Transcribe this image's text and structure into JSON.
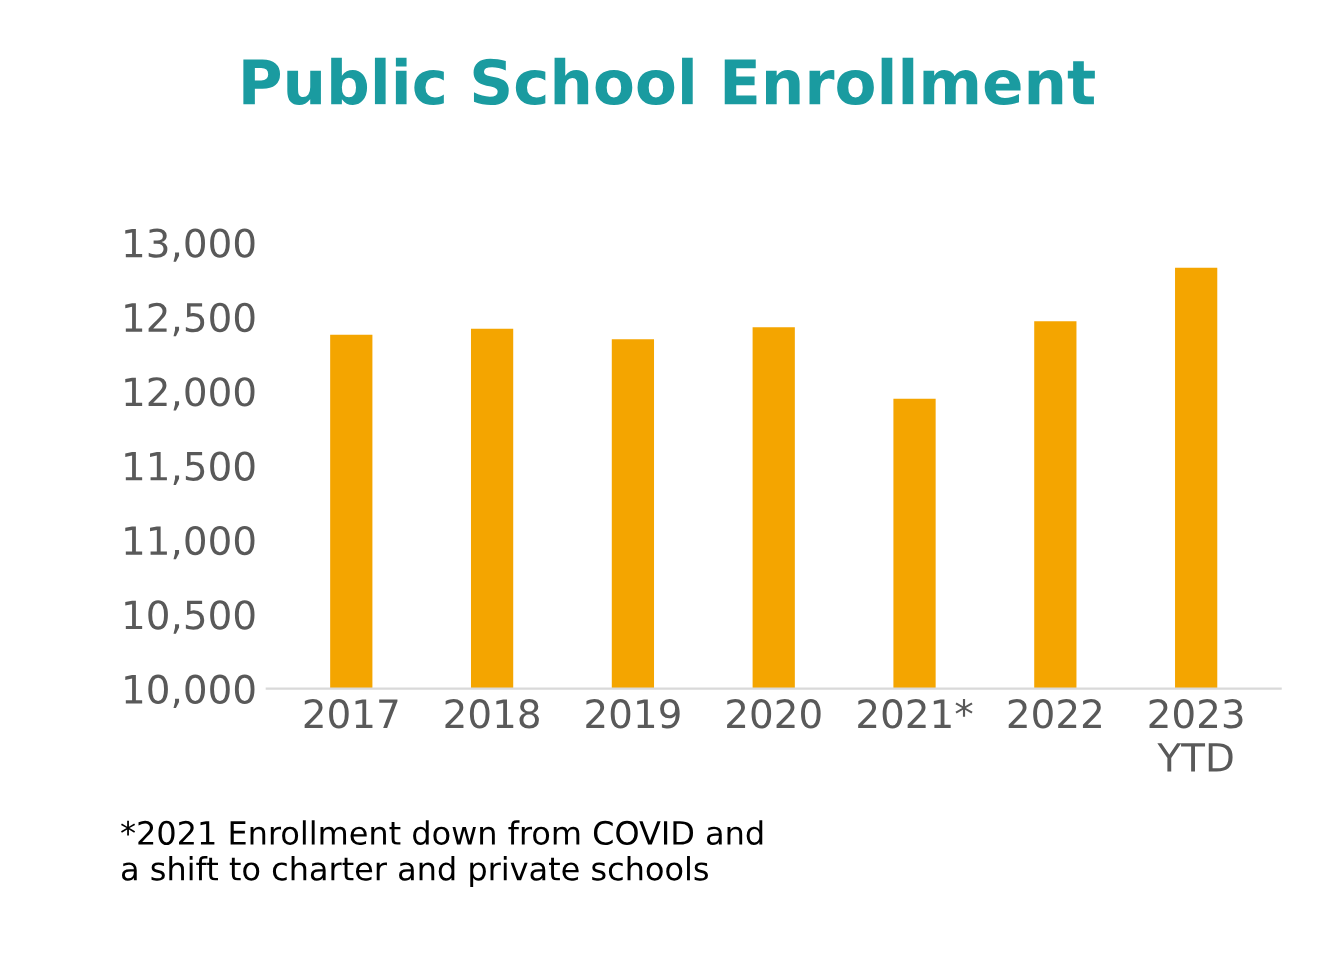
{
  "chart_data": {
    "type": "bar",
    "title": "Public School Enrollment",
    "categories": [
      "2017",
      "2018",
      "2019",
      "2020",
      "2021*",
      "2022",
      "2023\nYTD"
    ],
    "values": [
      12380,
      12420,
      12350,
      12430,
      11950,
      12470,
      12830
    ],
    "color": "#f4a500",
    "ylim": [
      10000,
      13000
    ],
    "yticks": [
      {
        "value": 10000,
        "label": "10,000"
      },
      {
        "value": 10500,
        "label": "10,500"
      },
      {
        "value": 11000,
        "label": "11,000"
      },
      {
        "value": 11500,
        "label": "11,500"
      },
      {
        "value": 12000,
        "label": "12,000"
      },
      {
        "value": 12500,
        "label": "12,500"
      },
      {
        "value": 13000,
        "label": "13,000"
      }
    ],
    "grid": false,
    "annotations": [
      "*2021 Enrollment down from COVID and\na shift to charter and private schools"
    ]
  }
}
